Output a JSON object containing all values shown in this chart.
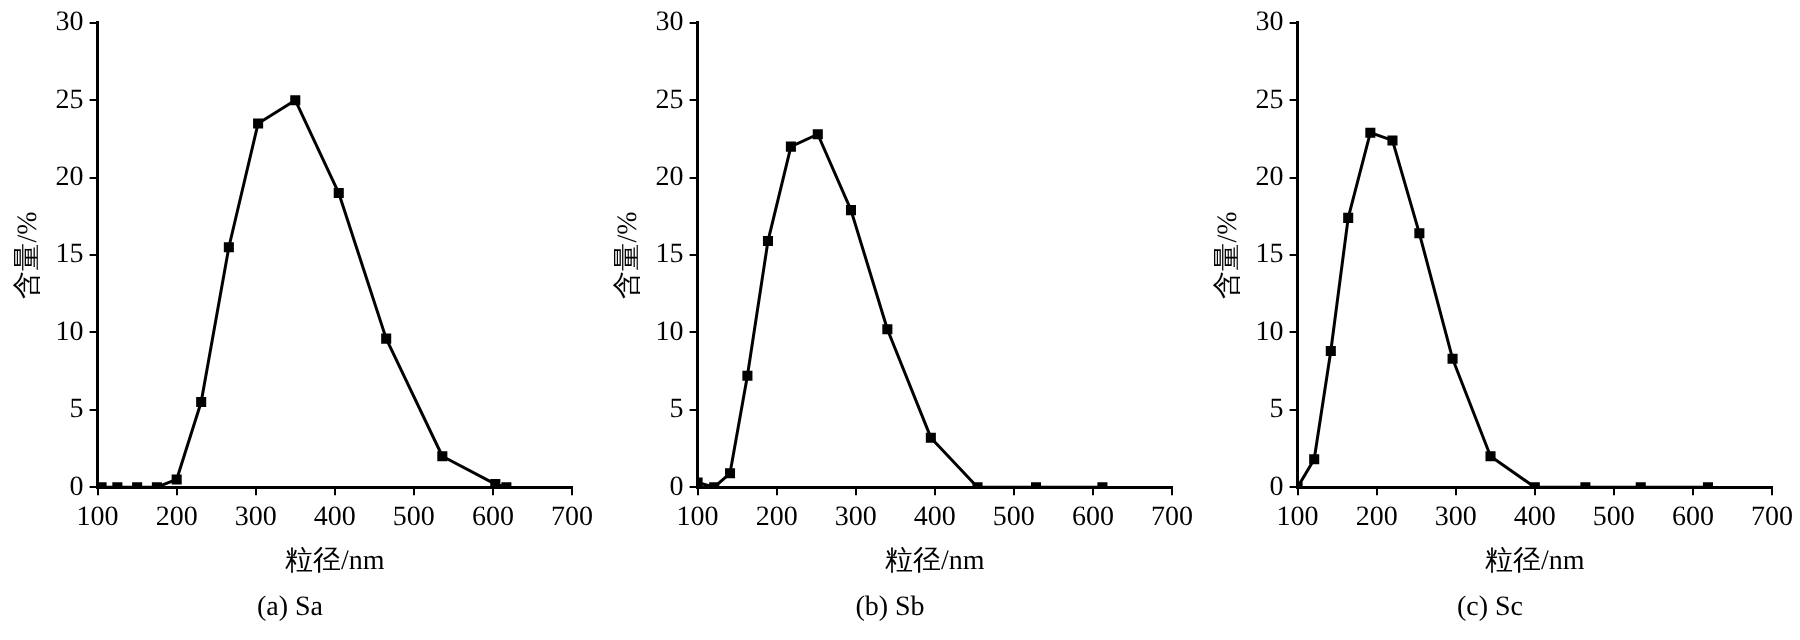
{
  "chart_data": [
    {
      "type": "line",
      "title": "(a) Sa",
      "xlabel": "粒径/nm",
      "ylabel": "含量/%",
      "xlim": [
        100,
        700
      ],
      "xticks": [
        100,
        200,
        300,
        400,
        500,
        600,
        700
      ],
      "ylim": [
        0,
        30
      ],
      "yticks": [
        0,
        5,
        10,
        15,
        20,
        25,
        30
      ],
      "grid": false,
      "legend": false,
      "marker": "square",
      "line_style": "solid",
      "series": [
        {
          "color": "#000000",
          "x": [
            105,
            125,
            150,
            175,
            200,
            231,
            266,
            303,
            350,
            405,
            465,
            536,
            603,
            617
          ],
          "values": [
            0,
            0,
            0,
            0,
            0.5,
            5.5,
            15.5,
            23.5,
            25,
            19,
            9.6,
            2,
            0.2,
            0
          ]
        }
      ]
    },
    {
      "type": "line",
      "title": "(b) Sb",
      "xlabel": "粒径/nm",
      "ylabel": "含量/%",
      "xlim": [
        100,
        700
      ],
      "xticks": [
        100,
        200,
        300,
        400,
        500,
        600,
        700
      ],
      "ylim": [
        0,
        30
      ],
      "yticks": [
        0,
        5,
        10,
        15,
        20,
        25,
        30
      ],
      "grid": false,
      "legend": false,
      "marker": "square",
      "line_style": "solid",
      "series": [
        {
          "color": "#000000",
          "x": [
            100,
            121,
            141,
            163,
            189,
            218,
            252,
            294,
            340,
            395,
            454,
            528,
            612
          ],
          "values": [
            0.3,
            0,
            0.9,
            7.2,
            15.9,
            22,
            22.8,
            17.9,
            10.2,
            3.2,
            0,
            0,
            0
          ]
        }
      ]
    },
    {
      "type": "line",
      "title": "(c) Sc",
      "xlabel": "粒径/nm",
      "ylabel": "含量/%",
      "xlim": [
        100,
        700
      ],
      "xticks": [
        100,
        200,
        300,
        400,
        500,
        600,
        700
      ],
      "ylim": [
        0,
        30
      ],
      "yticks": [
        0,
        5,
        10,
        15,
        20,
        25,
        30
      ],
      "grid": false,
      "legend": false,
      "marker": "square",
      "line_style": "solid",
      "series": [
        {
          "color": "#000000",
          "x": [
            100,
            121,
            142,
            164,
            192,
            220,
            254,
            296,
            344,
            400,
            464,
            534,
            619
          ],
          "values": [
            0,
            1.8,
            8.8,
            17.4,
            22.9,
            22.4,
            16.4,
            8.3,
            2,
            0,
            0,
            0,
            0
          ]
        }
      ]
    }
  ]
}
